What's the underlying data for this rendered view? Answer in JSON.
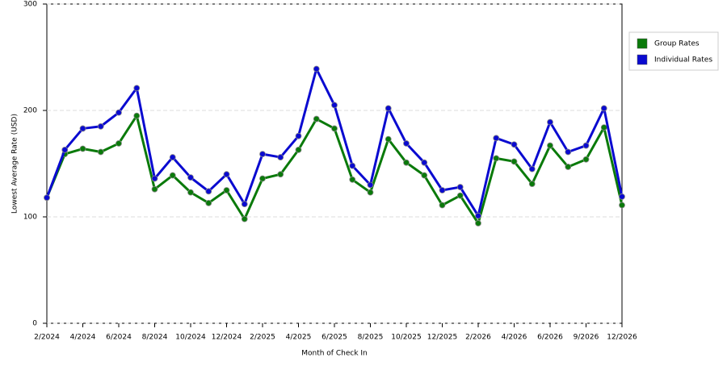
{
  "chart_data": {
    "type": "line",
    "x_label": "Month of Check In",
    "y_label": "Lowest Average Rate (USD)",
    "categories": [
      "2/2024",
      null,
      "4/2024",
      null,
      "6/2024",
      null,
      "8/2024",
      null,
      "10/2024",
      null,
      "12/2024",
      null,
      "2/2025",
      null,
      "4/2025",
      null,
      "6/2025",
      null,
      "8/2025",
      null,
      "10/2025",
      null,
      "12/2025",
      null,
      "2/2026",
      null,
      "4/2026",
      null,
      "6/2026",
      null,
      "9/2026",
      null,
      "12/2026"
    ],
    "series": [
      {
        "name": "Group Rates",
        "color": "#0a7a0a",
        "values": [
          118,
          159,
          164,
          161,
          169,
          195,
          126,
          139,
          123,
          113,
          125,
          98,
          136,
          140,
          163,
          192,
          183,
          135,
          123,
          173,
          151,
          139,
          111,
          120,
          94,
          155,
          152,
          131,
          167,
          147,
          154,
          184,
          111
        ]
      },
      {
        "name": "Individual Rates",
        "color": "#0a0ad0",
        "values": [
          118,
          163,
          183,
          185,
          198,
          221,
          136,
          156,
          137,
          124,
          140,
          112,
          159,
          156,
          176,
          239,
          205,
          148,
          130,
          202,
          169,
          151,
          125,
          128,
          101,
          174,
          168,
          145,
          189,
          161,
          167,
          202,
          119
        ]
      }
    ],
    "ylim": [
      0,
      300
    ],
    "yticks": [
      0,
      100,
      200,
      300
    ],
    "grid": true,
    "legend": "right"
  }
}
